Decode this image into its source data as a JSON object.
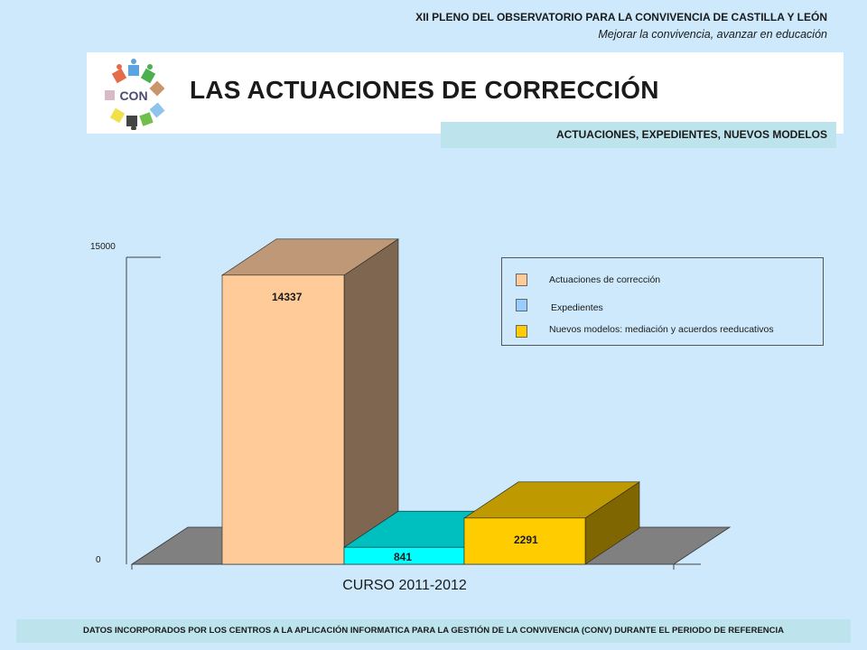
{
  "header": {
    "line1": "XII PLENO DEL OBSERVATORIO PARA LA CONVIVENCIA DE CASTILLA Y LEÓN",
    "line2": "Mejorar la convivencia, avanzar en educación"
  },
  "logo": {
    "text": "CON",
    "icon": "con-logo"
  },
  "title": "LAS ACTUACIONES DE CORRECCIÓN",
  "subtitle": "ACTUACIONES, EXPEDIENTES, NUEVOS MODELOS",
  "chart_data": {
    "type": "bar",
    "style": "3d",
    "categories": [
      "CURSO 2011-2012"
    ],
    "series": [
      {
        "name": "Actuaciones de corrección",
        "values": [
          14337
        ],
        "color": "#ffcc99",
        "side": "#7f6650",
        "top": "#bf9977"
      },
      {
        "name": "Expedientes",
        "values": [
          841
        ],
        "color": "#00ffff",
        "side": "#008080",
        "top": "#00bfbf"
      },
      {
        "name": "Nuevos modelos: mediación y acuerdos reeducativos",
        "values": [
          2291
        ],
        "color": "#ffcc00",
        "side": "#7f6600",
        "top": "#bf9900"
      }
    ],
    "ylim": [
      0,
      15000
    ],
    "yticks": [
      "0",
      "15000"
    ],
    "data_labels": [
      "14337",
      "841",
      "2291"
    ],
    "legend_placement": "right",
    "legend_colors": [
      "#ffcc99",
      "#99ccff",
      "#ffcc00"
    ],
    "grid": false
  },
  "footer": "DATOS INCORPORADOS POR LOS CENTROS A LA APLICACIÓN INFORMATICA PARA LA GESTIÓN DE LA CONVIVENCIA (CONV) DURANTE EL PERIODO DE REFERENCIA"
}
